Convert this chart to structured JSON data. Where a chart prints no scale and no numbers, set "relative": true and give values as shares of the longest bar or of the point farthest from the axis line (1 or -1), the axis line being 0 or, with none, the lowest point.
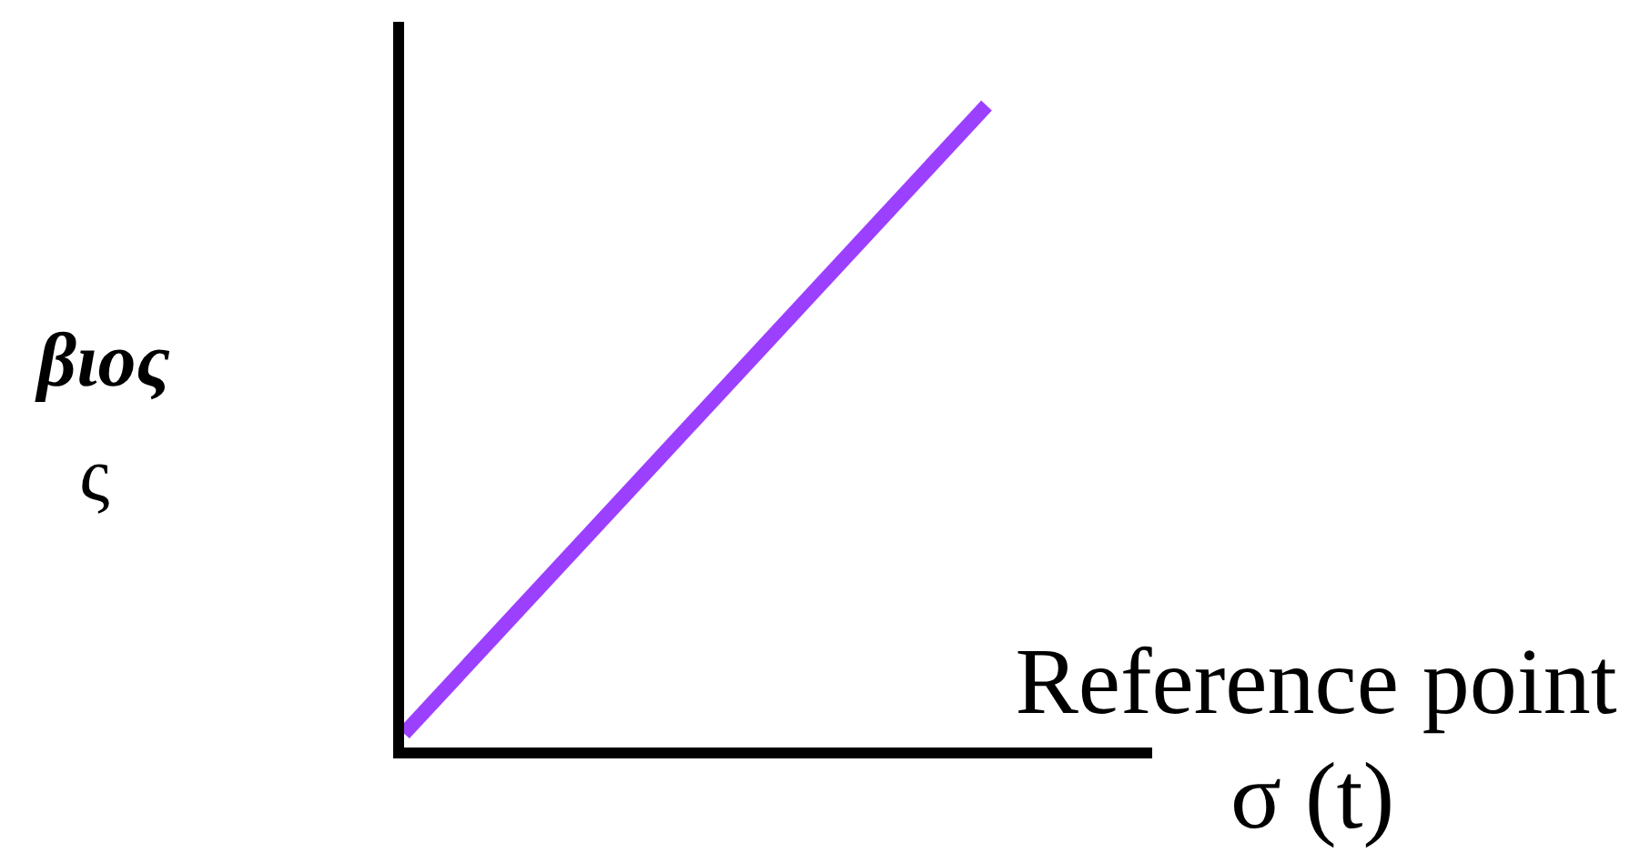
{
  "chart_data": {
    "type": "line",
    "relative": true,
    "categories": [
      null,
      null
    ],
    "xlabel": "Reference point\nσ (t)",
    "ylabel": "βιος\nς",
    "series": [
      {
        "color": "#9c40ff",
        "values": [
          0.03,
          1
        ]
      }
    ]
  }
}
